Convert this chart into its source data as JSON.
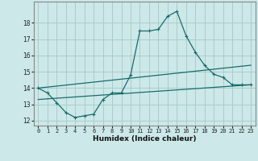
{
  "xlabel": "Humidex (Indice chaleur)",
  "bg_color": "#cce8e8",
  "grid_color": "#aacccc",
  "line_color": "#1a6b6b",
  "xlim": [
    -0.5,
    23.5
  ],
  "ylim": [
    11.7,
    19.3
  ],
  "yticks": [
    12,
    13,
    14,
    15,
    16,
    17,
    18
  ],
  "xticks": [
    0,
    1,
    2,
    3,
    4,
    5,
    6,
    7,
    8,
    9,
    10,
    11,
    12,
    13,
    14,
    15,
    16,
    17,
    18,
    19,
    20,
    21,
    22,
    23
  ],
  "line1_x": [
    0,
    1,
    2,
    3,
    4,
    5,
    6,
    7,
    8,
    9,
    10,
    11,
    12,
    13,
    14,
    15,
    16,
    17,
    18,
    19,
    20,
    21,
    22,
    23
  ],
  "line1_y": [
    14.0,
    13.7,
    13.1,
    12.5,
    12.2,
    12.3,
    12.4,
    13.3,
    13.7,
    13.7,
    14.8,
    17.5,
    17.5,
    17.6,
    18.4,
    18.7,
    17.2,
    16.2,
    15.4,
    14.85,
    14.65,
    14.2,
    14.2,
    14.2
  ],
  "line2_x": [
    0,
    23
  ],
  "line2_y": [
    13.3,
    14.2
  ],
  "line3_x": [
    0,
    23
  ],
  "line3_y": [
    14.0,
    15.4
  ]
}
